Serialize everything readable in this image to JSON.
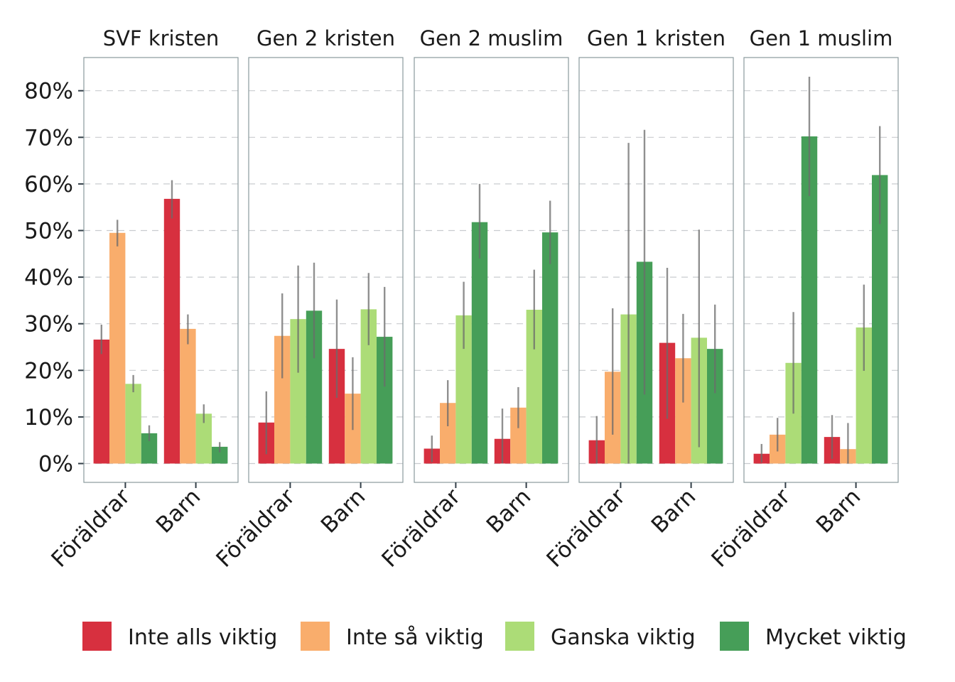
{
  "chart_data": {
    "type": "bar",
    "facets": [
      "SVF kristen",
      "Gen 2 kristen",
      "Gen 2 muslim",
      "Gen 1 kristen",
      "Gen 1 muslim"
    ],
    "categories": [
      "Föräldrar",
      "Barn"
    ],
    "series": [
      {
        "name": "Inte alls viktig",
        "color": "#d7303f"
      },
      {
        "name": "Inte så viktig",
        "color": "#f9ad6c"
      },
      {
        "name": "Ganska viktig",
        "color": "#acdc77"
      },
      {
        "name": "Mycket viktig",
        "color": "#469e58"
      }
    ],
    "panels": [
      {
        "facet": "SVF kristen",
        "values": [
          [
            26.6,
            49.5,
            17.1,
            6.5
          ],
          [
            56.8,
            28.9,
            10.7,
            3.6
          ]
        ],
        "errors": [
          [
            [
              23.5,
              29.8
            ],
            [
              46.6,
              52.3
            ],
            [
              15.3,
              19.0
            ],
            [
              4.8,
              8.2
            ]
          ],
          [
            [
              52.6,
              60.8
            ],
            [
              25.6,
              32.0
            ],
            [
              8.7,
              12.7
            ],
            [
              2.4,
              4.6
            ]
          ]
        ]
      },
      {
        "facet": "Gen 2 kristen",
        "values": [
          [
            8.8,
            27.4,
            31.0,
            32.8
          ],
          [
            24.6,
            15.0,
            33.1,
            27.2
          ]
        ],
        "errors": [
          [
            [
              2.0,
              15.5
            ],
            [
              18.3,
              36.5
            ],
            [
              19.5,
              42.5
            ],
            [
              22.6,
              43.1
            ]
          ],
          [
            [
              14.1,
              35.2
            ],
            [
              7.2,
              22.8
            ],
            [
              25.4,
              40.9
            ],
            [
              16.5,
              37.9
            ]
          ]
        ]
      },
      {
        "facet": "Gen 2 muslim",
        "values": [
          [
            3.2,
            13.0,
            31.8,
            51.8
          ],
          [
            5.3,
            12.0,
            33.0,
            49.6
          ]
        ],
        "errors": [
          [
            [
              0.3,
              6.0
            ],
            [
              8.0,
              17.9
            ],
            [
              24.6,
              39.0
            ],
            [
              44.0,
              60.0
            ]
          ],
          [
            [
              0.0,
              11.8
            ],
            [
              7.6,
              16.4
            ],
            [
              24.5,
              41.6
            ],
            [
              42.8,
              56.4
            ]
          ]
        ]
      },
      {
        "facet": "Gen 1 kristen",
        "values": [
          [
            5.0,
            19.7,
            32.0,
            43.3
          ],
          [
            25.9,
            22.6,
            27.0,
            24.6
          ]
        ],
        "errors": [
          [
            [
              0.0,
              10.2
            ],
            [
              6.2,
              33.3
            ],
            [
              0.0,
              68.8
            ],
            [
              14.8,
              71.6
            ]
          ],
          [
            [
              9.6,
              42.0
            ],
            [
              13.1,
              32.1
            ],
            [
              3.5,
              50.2
            ],
            [
              15.1,
              34.1
            ]
          ]
        ]
      },
      {
        "facet": "Gen 1 muslim",
        "values": [
          [
            2.1,
            6.2,
            21.6,
            70.2
          ],
          [
            5.7,
            3.1,
            29.2,
            61.9
          ]
        ],
        "errors": [
          [
            [
              0.2,
              4.2
            ],
            [
              2.6,
              9.8
            ],
            [
              10.7,
              32.5
            ],
            [
              57.4,
              83.0
            ]
          ],
          [
            [
              1.0,
              10.4
            ],
            [
              0.0,
              8.7
            ],
            [
              19.9,
              38.4
            ],
            [
              51.4,
              72.4
            ]
          ]
        ]
      }
    ],
    "yticks": [
      "0%",
      "10%",
      "20%",
      "30%",
      "40%",
      "50%",
      "60%",
      "70%",
      "80%"
    ],
    "ylim": [
      -4,
      87
    ],
    "xlabel": "",
    "ylabel": "",
    "grid": "horizontal dashed",
    "legend_position": "bottom"
  }
}
